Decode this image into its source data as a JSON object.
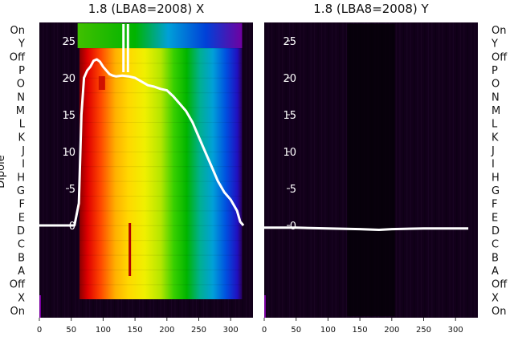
{
  "chart_data": [
    {
      "type": "heatmap",
      "title": "1.8 (LBA8=2008) X",
      "ylabel": "Dipole",
      "dipole_labels": [
        "On",
        "Y",
        "Off",
        "P",
        "O",
        "N",
        "M",
        "L",
        "K",
        "J",
        "I",
        "H",
        "G",
        "F",
        "E",
        "D",
        "C",
        "B",
        "A",
        "Off",
        "X",
        "On"
      ],
      "xticks": [
        0,
        50,
        100,
        150,
        200,
        250,
        300
      ],
      "xlim": [
        0,
        335
      ],
      "yticks": [
        0,
        5,
        10,
        15,
        20,
        25
      ],
      "ylim": [
        -12.5,
        27.5
      ],
      "colormap": "spectral",
      "line_color": "#ffffff",
      "line": {
        "x": [
          0,
          40,
          55,
          62,
          66,
          70,
          75,
          80,
          85,
          90,
          95,
          100,
          105,
          110,
          115,
          120,
          130,
          140,
          150,
          160,
          170,
          180,
          190,
          200,
          210,
          220,
          230,
          240,
          250,
          260,
          270,
          280,
          290,
          300,
          310,
          315,
          320
        ],
        "y": [
          0,
          0,
          0,
          3,
          15,
          20,
          21,
          21.5,
          22.3,
          22.5,
          22.2,
          21.5,
          21,
          20.5,
          20.3,
          20.2,
          20.3,
          20.2,
          20,
          19.5,
          19,
          18.8,
          18.5,
          18.3,
          17.5,
          16.5,
          15.5,
          14,
          12,
          10,
          8,
          6,
          4.5,
          3.5,
          2,
          0.5,
          0
        ]
      }
    },
    {
      "type": "heatmap",
      "title": "1.8 (LBA8=2008) Y",
      "dipole_labels": [
        "On",
        "Y",
        "Off",
        "P",
        "O",
        "N",
        "M",
        "L",
        "K",
        "J",
        "I",
        "H",
        "G",
        "F",
        "E",
        "D",
        "C",
        "B",
        "A",
        "Off",
        "X",
        "On"
      ],
      "xticks": [
        0,
        50,
        100,
        150,
        200,
        250,
        300
      ],
      "xlim": [
        0,
        335
      ],
      "yticks": [
        0,
        5,
        10,
        15,
        20,
        25
      ],
      "ylim": [
        -12.5,
        27.5
      ],
      "colormap": "dark",
      "line_color": "#ffffff",
      "line": {
        "x": [
          0,
          50,
          100,
          150,
          180,
          200,
          250,
          300,
          320
        ],
        "y": [
          -0.3,
          -0.3,
          -0.4,
          -0.5,
          -0.6,
          -0.5,
          -0.4,
          -0.4,
          -0.4
        ]
      }
    }
  ]
}
